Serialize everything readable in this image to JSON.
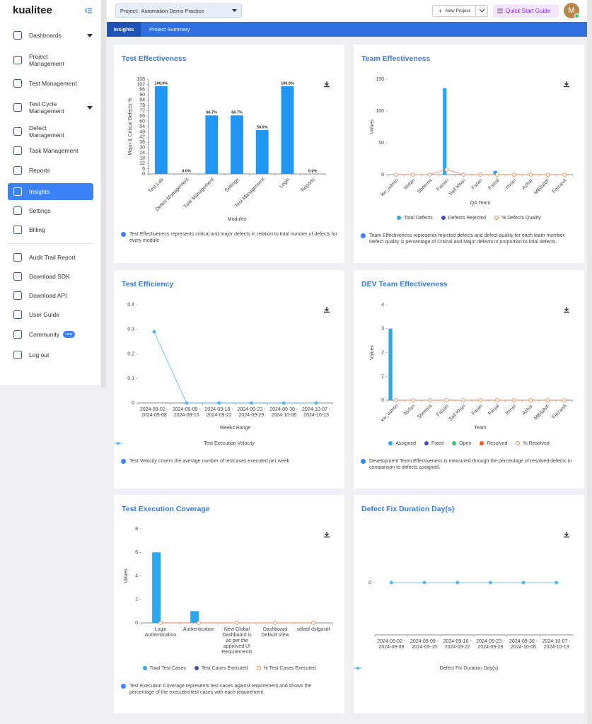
{
  "sidebar": {
    "logo": "kualitee",
    "menu": [
      "Dashboards",
      "Project Management",
      "Test Management",
      "Test Cycle Management",
      "Defect Management",
      "Task Management",
      "Reports",
      "Insights",
      "Settings",
      "Billing"
    ],
    "active_index": 7,
    "secondary": [
      "Audit Trail Report",
      "Download SDK",
      "Download API",
      "User Guide",
      "Community",
      "Log out"
    ],
    "community_badge": "new"
  },
  "header": {
    "project_label": "Project:",
    "project": "Automation Demo Practice",
    "new_project": "New Project",
    "quick_start": "Quick Start Guide",
    "avatar": "M"
  },
  "tabs": [
    "Insights",
    "Project Summary"
  ],
  "chart_data": [
    {
      "type": "bar",
      "title": "Test Effectiveness",
      "y_label": "Major & Critical Defects %",
      "x_label": "Modules",
      "categories": [
        "Test Lab",
        "Defect Management",
        "Task Management",
        "Settings",
        "Test Management",
        "Login",
        "Reports"
      ],
      "series": [
        {
          "name": null,
          "color": "#2196f3",
          "values": [
            100,
            0,
            66.7,
            66.7,
            50,
            100,
            0
          ],
          "value_labels": [
            "100.0%",
            "0.0%",
            "66.7%",
            "66.7%",
            "50.0%",
            "100.0%",
            "0.0%"
          ]
        }
      ],
      "ylim": [
        0,
        108
      ],
      "yticks": [
        0,
        6,
        12,
        18,
        24,
        30,
        36,
        42,
        48,
        54,
        60,
        66,
        72,
        78,
        84,
        90,
        96,
        102,
        108
      ],
      "info": "Test Effectiveness represents critical and major defects in relation to total number of defects for every module"
    },
    {
      "type": "bar",
      "title": "Team Effectiveness",
      "y_label": "Values",
      "x_label": "QA Team",
      "categories": [
        "kw_admin",
        "Nirfan",
        "Sheema",
        "Faizan",
        "Saif Khan",
        "Faran",
        "Faisal",
        "Imran",
        "Azhar",
        "MBilalVF",
        "FaizanA"
      ],
      "series": [
        {
          "name": "Total Defects",
          "color": "#29a8f0",
          "values": [
            0,
            0,
            0,
            136,
            0,
            0,
            6,
            0,
            0,
            0,
            0
          ]
        },
        {
          "name": "Defects Rejected",
          "color": "#3f4fc0",
          "values": [
            0,
            0,
            0,
            0,
            0,
            0,
            0,
            0,
            0,
            0,
            0
          ]
        },
        {
          "name": "% Defects Quality",
          "color": "#f7834a",
          "type": "line",
          "values": [
            0,
            0,
            0,
            8,
            0,
            0,
            0,
            0,
            0,
            0,
            0
          ]
        }
      ],
      "ylim": [
        0,
        150
      ],
      "yticks": [
        0,
        50,
        100,
        150
      ],
      "info": "Team Effectiveness represents rejected defects and defect quality for each team member. Defect quality is percentage of Critical and Major defects in proportion to total defects."
    },
    {
      "type": "line",
      "title": "Test Efficiency",
      "x_label": "Weeks Range",
      "categories": [
        "2024-09-02 - 2024-09-08",
        "2024-09-09 - 2024-09-15",
        "2024-09-16 - 2024-09-22",
        "2024-09-23 - 2024-09-29",
        "2024-09-30 - 2024-10-06",
        "2024-10-07 - 2024-10-13"
      ],
      "series": [
        {
          "name": "Test Execution Velocity",
          "color": "#4fb8ef",
          "values": [
            0.29,
            0,
            0,
            0,
            0,
            0
          ]
        }
      ],
      "ylim": [
        0,
        0.4
      ],
      "yticks": [
        0,
        0.1,
        0.2,
        0.3,
        0.4
      ],
      "info": "Test Velocity covers the average number of testcases executed per week"
    },
    {
      "type": "bar",
      "title": "DEV Team Effectiveness",
      "y_label": "Values",
      "x_label": "Team",
      "categories": [
        "kw_admin",
        "Nirfan",
        "Sheema",
        "Faizan",
        "Saif Khan",
        "Faran",
        "Faisal",
        "Imran",
        "Azhar",
        "MBilalVF",
        "FaizanA"
      ],
      "series": [
        {
          "name": "Assigned",
          "color": "#29a8f0",
          "values": [
            3,
            0,
            0,
            0,
            0,
            0,
            0,
            0,
            0,
            0,
            0
          ]
        },
        {
          "name": "Fixed",
          "color": "#3f4fc0",
          "values": [
            0,
            0,
            0,
            0,
            0,
            0,
            0,
            0,
            0,
            0,
            0
          ]
        },
        {
          "name": "Open",
          "color": "#2ecc71",
          "values": [
            0,
            0,
            0,
            0,
            0,
            0,
            0,
            0,
            0,
            0,
            0
          ]
        },
        {
          "name": "Resolved",
          "color": "#f05a28",
          "values": [
            0,
            0,
            0,
            0,
            0,
            0,
            0,
            0,
            0,
            0,
            0
          ]
        },
        {
          "name": "% Resolved",
          "color": "#f7834a",
          "type": "line",
          "values": [
            0,
            0,
            0,
            0,
            0,
            0,
            0,
            0,
            0,
            0,
            0
          ]
        }
      ],
      "ylim": [
        0,
        4
      ],
      "yticks": [
        0,
        1,
        2,
        3,
        4
      ],
      "info": "Development Team Effectiveness is measured through the percentage of resolved defects in comparison to defects assigned."
    },
    {
      "type": "bar",
      "title": "Test Execution Coverage",
      "y_label": "Values",
      "categories": [
        "Login Authentication",
        "Authentication",
        "New Global Dashboard is as per the approved UI Requirements",
        "Dashboard Default View",
        "sdfasf dsfgasdf"
      ],
      "series": [
        {
          "name": "Total Test Cases",
          "color": "#29a8f0",
          "values": [
            6,
            1,
            0,
            0,
            0
          ]
        },
        {
          "name": "Test Cases Executed",
          "color": "#3f4fc0",
          "values": [
            0,
            0,
            0,
            0,
            0
          ]
        },
        {
          "name": "% Test Cases Executed",
          "color": "#f7834a",
          "type": "line",
          "values": [
            0,
            0,
            0,
            0,
            0
          ]
        }
      ],
      "ylim": [
        0,
        8
      ],
      "yticks": [
        0,
        2,
        4,
        6,
        8
      ],
      "info": "Test Execution Coverage represents test cases against requirement and shows the percentage of the executed test cases with each requirement."
    },
    {
      "type": "line",
      "title": "Defect Fix Duration Day(s)",
      "categories": [
        "2024-09-02 - 2024-09-08",
        "2024-09-09 - 2024-09-15",
        "2024-09-16 - 2024-09-22",
        "2024-09-23 - 2024-09-29",
        "2024-09-30 - 2024-10-06",
        "2024-10-07 - 2024-10-13"
      ],
      "series": [
        {
          "name": "Defect Fix Duration Day(s)",
          "color": "#4fb8ef",
          "values": [
            0,
            0,
            0,
            0,
            0,
            0
          ]
        }
      ],
      "ylim": [
        -1,
        1
      ],
      "yticks": [
        0
      ]
    }
  ]
}
